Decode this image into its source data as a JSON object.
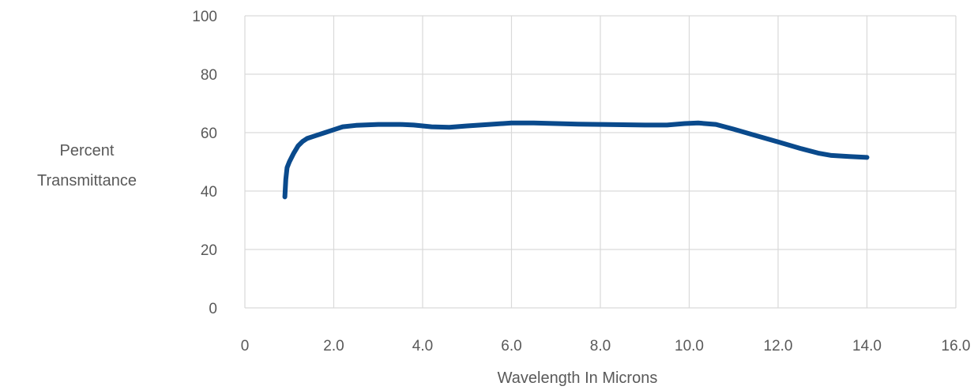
{
  "chart_data": {
    "type": "line",
    "title": "",
    "xlabel": "Wavelength In Microns",
    "ylabel_lines": [
      "Percent",
      "Transmittance"
    ],
    "xlim": [
      0,
      16
    ],
    "ylim": [
      0,
      100
    ],
    "x_ticks": [
      0,
      2,
      4,
      6,
      8,
      10,
      12,
      14,
      16
    ],
    "x_tick_labels": [
      "0",
      "2.0",
      "4.0",
      "6.0",
      "8.0",
      "10.0",
      "12.0",
      "14.0",
      "16.0"
    ],
    "y_ticks": [
      0,
      20,
      40,
      60,
      80,
      100
    ],
    "y_tick_labels": [
      "0",
      "20",
      "40",
      "60",
      "80",
      "100"
    ],
    "grid": true,
    "legend": "none",
    "colors": {
      "line": "#0a4a8c",
      "grid": "#d9d9d9",
      "text": "#595959"
    },
    "series": [
      {
        "x": [
          0.9,
          0.92,
          0.95,
          1.0,
          1.1,
          1.2,
          1.3,
          1.4,
          1.6,
          1.8,
          2.0,
          2.2,
          2.5,
          3.0,
          3.5,
          3.8,
          4.2,
          4.6,
          5.0,
          5.5,
          6.0,
          6.5,
          7.0,
          7.5,
          8.0,
          8.5,
          9.0,
          9.5,
          9.9,
          10.2,
          10.6,
          11.0,
          11.5,
          12.0,
          12.5,
          12.9,
          13.2,
          13.6,
          14.0
        ],
        "y": [
          38,
          44,
          48,
          50,
          53,
          55.5,
          57,
          58,
          59,
          60,
          61,
          62,
          62.5,
          62.8,
          62.8,
          62.6,
          62,
          61.8,
          62.3,
          62.8,
          63.3,
          63.3,
          63.1,
          62.9,
          62.8,
          62.7,
          62.6,
          62.6,
          63.1,
          63.3,
          62.8,
          61.2,
          59,
          56.8,
          54.6,
          53,
          52.2,
          51.8,
          51.5
        ]
      }
    ]
  }
}
